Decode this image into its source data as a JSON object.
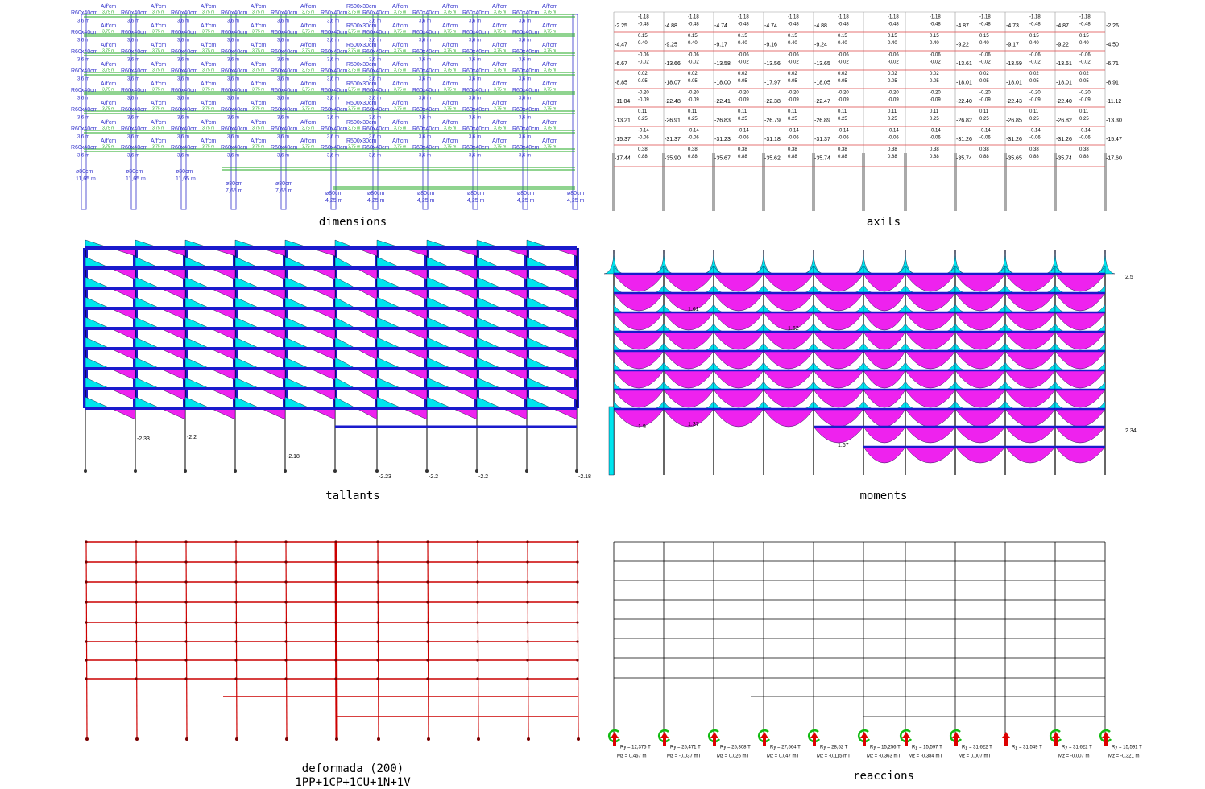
{
  "dimensions": {
    "caption": "dimensions",
    "beam": "R60x40cm",
    "beam_span": "3,6 m",
    "load": "A/f'cm",
    "load_value": "3,75 m",
    "wide_beam": "R500x30cm",
    "column": "ø80cm",
    "column_heights": [
      "11,65 m",
      "7,65 m",
      "4,25 m"
    ]
  },
  "axils": {
    "caption": "axils",
    "column_values": [
      [
        "-2.25",
        "-4.47",
        "-6.67",
        "-8.85",
        "-11.04",
        "-13.21",
        "-15.37",
        "-17.44"
      ],
      [
        "-4.88",
        "-9.25",
        "-13.66",
        "-18.07",
        "-22.48",
        "-26.91",
        "-31.37",
        "-35.90"
      ],
      [
        "-4.74",
        "-9.17",
        "-13.58",
        "-18.00",
        "-22.41",
        "-26.83",
        "-31.23",
        "-35.67"
      ],
      [
        "-4.74",
        "-9.16",
        "-13.56",
        "-17.97",
        "-22.38",
        "-26.79",
        "-31.18",
        "-35.62"
      ],
      [
        "-4.88",
        "-9.24",
        "-13.65",
        "-18.05",
        "-22.47",
        "-26.89",
        "-31.37",
        "-35.74"
      ],
      [
        "-4.87",
        "-9.22",
        "-13.61",
        "-18.01",
        "-22.40",
        "-26.82",
        "-31.26",
        "-35.74"
      ],
      [
        "-4.73",
        "-9.17",
        "-13.59",
        "-18.01",
        "-22.43",
        "-26.85",
        "-31.26",
        "-35.65"
      ],
      [
        "-4.87",
        "-9.22",
        "-13.61",
        "-18.01",
        "-22.40",
        "-26.82",
        "-31.26",
        "-35.74"
      ],
      [
        "-2.26",
        "-4.50",
        "-6.71",
        "-8.91",
        "-11.12",
        "-13.30",
        "-15.47",
        "-17.60"
      ]
    ],
    "beam_values": [
      [
        "-1.18",
        "-0.48"
      ],
      [
        "0.15",
        "0.40"
      ],
      [
        "-0.06",
        "-0.02"
      ],
      [
        "0.02",
        "0.05"
      ],
      [
        "-0.20",
        "-0.09"
      ],
      [
        "0.11",
        "0.25"
      ],
      [
        "-0.14",
        "-0.06"
      ],
      [
        "0.38",
        "0.88"
      ]
    ]
  },
  "tallants": {
    "caption": "tallants",
    "labels": [
      "-2.33",
      "-2.2",
      "-2.18",
      "-2.23",
      "-2.2",
      "-2.2",
      "-2.18"
    ]
  },
  "moments": {
    "caption": "moments",
    "labels": [
      "1.61",
      "1.62",
      "1.67",
      "2.5",
      "2.34",
      "1.9",
      "1.37"
    ]
  },
  "deformada": {
    "caption": "deformada (200)",
    "combination": "1PP+1CP+1CU+1N+1V"
  },
  "reaccions": {
    "caption": "reaccions",
    "supports": [
      [
        "Ry = 12,375 T",
        "Mz = 0,467 mT"
      ],
      [
        "Ry = 25,471 T",
        "Mz = -0,037 mT"
      ],
      [
        "Ry = 25,308 T",
        "Mz = 0,026 mT"
      ],
      [
        "Ry = 27,564 T",
        "Mz = 0,047 mT"
      ],
      [
        "Ry = 28,52 T",
        "Mz = -0,115 mT"
      ],
      [
        "Ry = 15,256 T",
        "Mz = -0,363 mT"
      ],
      [
        "Ry = 15,597 T",
        "Mz = -0,384 mT"
      ],
      [
        "Ry = 31,622 T",
        "Mz = 0,007 mT"
      ],
      [
        "Ry = 31,549 T"
      ],
      [
        "Ry = 31,622 T",
        "Mz = -0,007 mT"
      ],
      [
        "Ry = 15,591 T",
        "Mz = -0,321 mT"
      ]
    ]
  }
}
